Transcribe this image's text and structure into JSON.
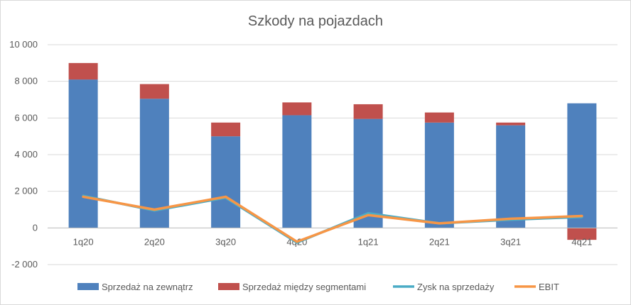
{
  "chart_data": {
    "type": "bar",
    "title": "Szkody na pojazdach",
    "categories": [
      "1q20",
      "2q20",
      "3q20",
      "4q20",
      "1q21",
      "2q21",
      "3q21",
      "4q21"
    ],
    "y_ticks": [
      "10 000",
      "8 000",
      "6 000",
      "4 000",
      "2 000",
      "0",
      "-2 000"
    ],
    "ylim": [
      -2000,
      10000
    ],
    "stacked": true,
    "grid": true,
    "legend_position": "bottom",
    "series": [
      {
        "name": "Sprzedaż na zewnątrz",
        "type": "bar",
        "color": "#4f81bd",
        "values": [
          8100,
          7050,
          5000,
          6150,
          5950,
          5750,
          5600,
          6800
        ]
      },
      {
        "name": "Sprzedaż między segmentami",
        "type": "bar",
        "color": "#c0504d",
        "values": [
          900,
          800,
          750,
          700,
          800,
          550,
          150,
          -650
        ]
      },
      {
        "name": "Zysk na sprzedaży",
        "type": "line",
        "color": "#4bacc6",
        "values": [
          1750,
          950,
          1650,
          -800,
          800,
          250,
          450,
          600
        ]
      },
      {
        "name": "EBIT",
        "type": "line",
        "color": "#f79646",
        "values": [
          1700,
          1000,
          1700,
          -750,
          700,
          250,
          500,
          650
        ]
      }
    ]
  }
}
